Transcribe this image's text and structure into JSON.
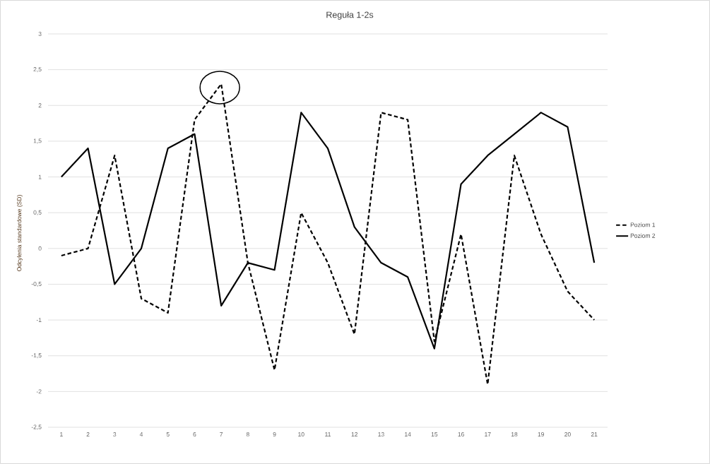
{
  "chart_data": {
    "type": "line",
    "title": "Reguła 1-2s",
    "ylabel": "Odcylenia standardowe (SD)",
    "categories": [
      "1",
      "2",
      "3",
      "4",
      "5",
      "6",
      "7",
      "8",
      "9",
      "10",
      "11",
      "12",
      "13",
      "14",
      "15",
      "16",
      "17",
      "18",
      "19",
      "20",
      "21"
    ],
    "series": [
      {
        "name": "Poziom 1",
        "color": "#000000",
        "line_style": "dashed",
        "values": [
          -0.1,
          0,
          1.3,
          -0.7,
          -0.9,
          1.8,
          2.3,
          -0.2,
          -1.7,
          0.5,
          -0.2,
          -1.2,
          1.9,
          1.8,
          -1.3,
          0.2,
          -1.9,
          1.3,
          0.2,
          -0.6,
          -1.0
        ]
      },
      {
        "name": "Poziom 2",
        "color": "#000000",
        "line_style": "solid",
        "values": [
          1.0,
          1.4,
          -0.5,
          0,
          1.4,
          1.6,
          -0.8,
          -0.2,
          -0.3,
          1.9,
          1.4,
          0.3,
          -0.2,
          -0.4,
          -1.4,
          0.9,
          1.3,
          1.6,
          1.9,
          1.7,
          -0.2
        ]
      }
    ],
    "ylim": [
      -2.5,
      3
    ],
    "yticks": [
      {
        "value": -2.5,
        "label": "-2,5"
      },
      -2,
      {
        "value": -1.5,
        "label": "-1,5"
      },
      -1,
      {
        "value": -0.5,
        "label": "-0,5"
      },
      0,
      {
        "value": 0.5,
        "label": "0,5"
      },
      1,
      {
        "value": 1.5,
        "label": "1,5"
      },
      2,
      {
        "value": 2.5,
        "label": "2,5"
      },
      3
    ],
    "grid": "y",
    "legend": "right",
    "marker": "none"
  }
}
